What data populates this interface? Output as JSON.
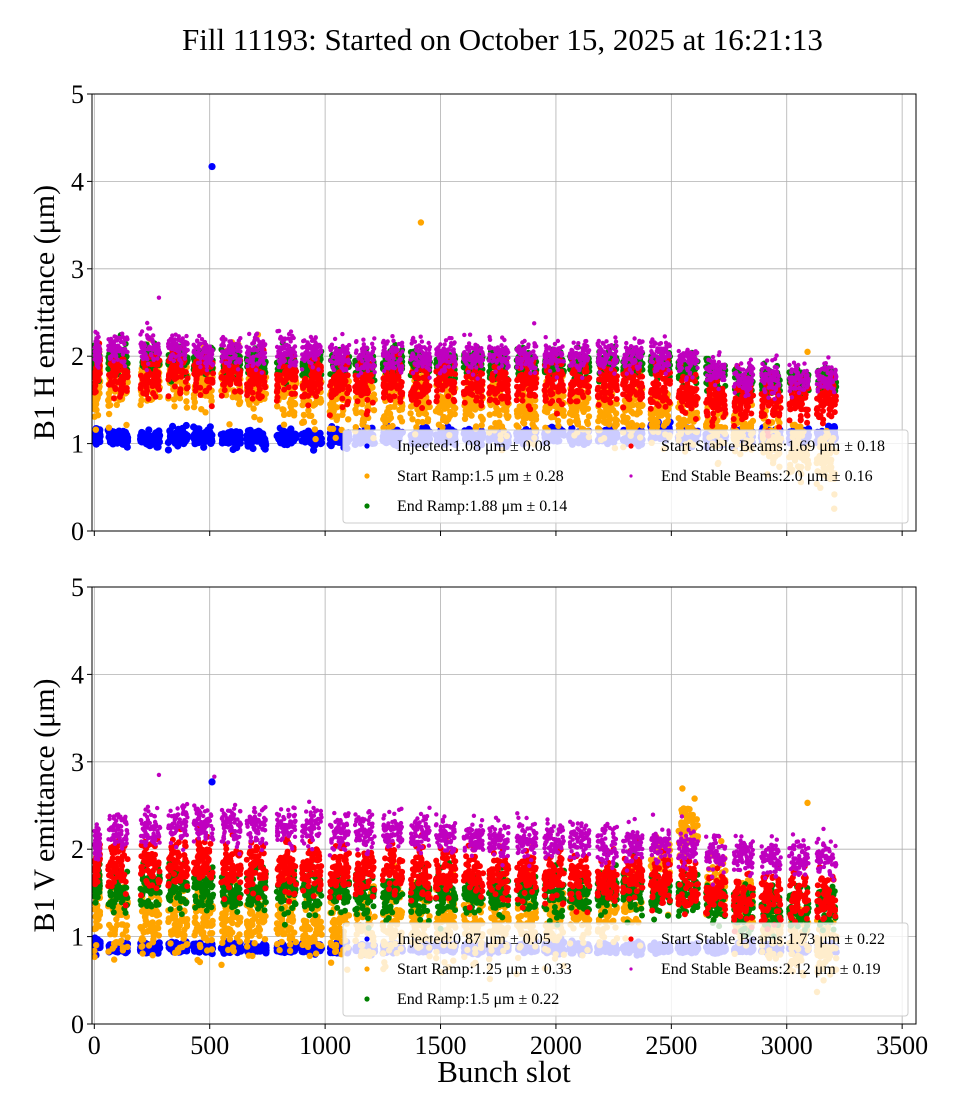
{
  "chart_data": [
    {
      "type": "scatter",
      "title": "Fill 11193: Started on October 15, 2025 at 16:21:13",
      "xlabel": "",
      "ylabel": "B1 H emittance (μm)",
      "xlim": [
        -10,
        3560
      ],
      "ylim": [
        0,
        5
      ],
      "xticks": [
        0,
        500,
        1000,
        1500,
        2000,
        2500,
        3000,
        3500
      ],
      "xtick_labels": [],
      "yticks": [
        0,
        1,
        2,
        3,
        4,
        5
      ],
      "ytick_labels": [
        "0",
        "1",
        "2",
        "3",
        "4",
        "5"
      ],
      "grid": true,
      "legend_placement": "lower-right",
      "trains_start_slots": [
        0,
        60,
        200,
        320,
        430,
        550,
        660,
        790,
        900,
        1020,
        1130,
        1250,
        1370,
        1480,
        1600,
        1710,
        1830,
        1950,
        2060,
        2180,
        2290,
        2410,
        2530,
        2650,
        2770,
        2890,
        3010,
        3130
      ],
      "train_span": 100,
      "last_filled_slot": 3230,
      "series": [
        {
          "name": "Injected",
          "label": "Injected:1.08 μm ± 0.08",
          "color": "#0000ff",
          "mean": 1.08,
          "std": 0.08,
          "train_means": [
            1.1,
            1.06,
            1.06,
            1.08,
            1.07,
            1.06,
            1.05,
            1.07,
            1.05,
            1.06,
            1.07,
            1.08,
            1.08,
            1.08,
            1.08,
            1.08,
            1.08,
            1.09,
            1.08,
            1.08,
            1.09,
            1.15,
            1.08,
            1.08,
            1.09,
            1.08,
            1.08,
            1.08
          ],
          "outliers": [
            [
              510,
              4.17
            ]
          ]
        },
        {
          "name": "Start Ramp",
          "label": "Start Ramp:1.5 μm ± 0.28",
          "color": "#ffa500",
          "mean": 1.5,
          "std": 0.28,
          "train_means": [
            1.6,
            1.65,
            1.75,
            1.75,
            1.7,
            1.7,
            1.65,
            1.6,
            1.6,
            1.55,
            1.55,
            1.55,
            1.55,
            1.5,
            1.5,
            1.45,
            1.45,
            1.45,
            1.45,
            1.4,
            1.4,
            1.35,
            1.3,
            1.25,
            1.2,
            1.05,
            0.9,
            0.85
          ],
          "outliers": [
            [
              1415,
              3.53
            ],
            [
              3090,
              2.05
            ]
          ]
        },
        {
          "name": "End Ramp",
          "label": "End Ramp:1.88 μm ± 0.14",
          "color": "#008000",
          "mean": 1.88,
          "std": 0.14,
          "train_means": [
            1.95,
            1.95,
            1.95,
            1.95,
            1.95,
            1.95,
            1.9,
            1.9,
            1.9,
            1.9,
            1.9,
            1.9,
            1.9,
            1.9,
            1.9,
            1.9,
            1.9,
            1.9,
            1.9,
            1.9,
            1.9,
            1.9,
            1.85,
            1.8,
            1.7,
            1.7,
            1.7,
            1.7
          ],
          "outliers": []
        },
        {
          "name": "Start Stable Beams",
          "label": "Start Stable Beams:1.69 μm ± 0.18",
          "color": "#ff0000",
          "mean": 1.69,
          "std": 0.18,
          "train_means": [
            1.85,
            1.8,
            1.8,
            1.85,
            1.8,
            1.8,
            1.75,
            1.75,
            1.75,
            1.7,
            1.7,
            1.7,
            1.7,
            1.7,
            1.7,
            1.7,
            1.7,
            1.7,
            1.7,
            1.7,
            1.7,
            1.65,
            1.6,
            1.5,
            1.5,
            1.5,
            1.5,
            1.5
          ],
          "outliers": []
        },
        {
          "name": "End Stable Beams",
          "label": "End Stable Beams:2.0 μm ± 0.16",
          "color": "#bf00bf",
          "mean": 2.0,
          "std": 0.16,
          "train_means": [
            2.05,
            2.1,
            2.1,
            2.1,
            2.05,
            2.05,
            2.05,
            2.05,
            2.05,
            2.0,
            2.0,
            2.0,
            2.0,
            2.0,
            2.0,
            2.0,
            2.0,
            2.0,
            2.0,
            2.0,
            2.0,
            2.0,
            1.95,
            1.85,
            1.75,
            1.75,
            1.75,
            1.75
          ],
          "outliers": [
            [
              280,
              2.67
            ]
          ]
        }
      ]
    },
    {
      "type": "scatter",
      "title": "",
      "xlabel": "Bunch slot",
      "ylabel": "B1 V emittance (μm)",
      "xlim": [
        -10,
        3560
      ],
      "ylim": [
        0,
        5
      ],
      "xticks": [
        0,
        500,
        1000,
        1500,
        2000,
        2500,
        3000,
        3500
      ],
      "xtick_labels": [
        "0",
        "500",
        "1000",
        "1500",
        "2000",
        "2500",
        "3000",
        "3500"
      ],
      "yticks": [
        0,
        1,
        2,
        3,
        4,
        5
      ],
      "ytick_labels": [
        "0",
        "1",
        "2",
        "3",
        "4",
        "5"
      ],
      "grid": true,
      "legend_placement": "lower-right",
      "trains_start_slots": [
        0,
        60,
        200,
        320,
        430,
        550,
        660,
        790,
        900,
        1020,
        1130,
        1250,
        1370,
        1480,
        1600,
        1710,
        1830,
        1950,
        2060,
        2180,
        2290,
        2410,
        2530,
        2650,
        2770,
        2890,
        3010,
        3130
      ],
      "train_span": 100,
      "last_filled_slot": 3230,
      "series": [
        {
          "name": "Injected",
          "label": "Injected:0.87 μm ± 0.05",
          "color": "#0000ff",
          "mean": 0.87,
          "std": 0.05,
          "train_means": [
            0.92,
            0.88,
            0.87,
            0.88,
            0.87,
            0.87,
            0.86,
            0.87,
            0.87,
            0.86,
            0.86,
            0.87,
            0.87,
            0.87,
            0.87,
            0.87,
            0.87,
            0.87,
            0.87,
            0.87,
            0.87,
            0.87,
            0.87,
            0.87,
            0.87,
            0.87,
            0.86,
            0.86
          ],
          "outliers": [
            [
              510,
              2.77
            ]
          ]
        },
        {
          "name": "Start Ramp",
          "label": "Start Ramp:1.25 μm ± 0.33",
          "color": "#ffa500",
          "mean": 1.25,
          "std": 0.33,
          "train_means": [
            1.35,
            1.2,
            1.2,
            1.2,
            1.2,
            1.2,
            1.2,
            1.2,
            1.2,
            1.15,
            1.15,
            1.15,
            1.15,
            1.15,
            1.15,
            1.15,
            1.15,
            1.15,
            1.25,
            1.3,
            1.4,
            1.8,
            2.2,
            1.6,
            1.3,
            1.1,
            0.95,
            0.9
          ],
          "outliers": [
            [
              3090,
              2.53
            ]
          ]
        },
        {
          "name": "End Ramp",
          "label": "End Ramp:1.5 μm ± 0.22",
          "color": "#008000",
          "mean": 1.5,
          "std": 0.22,
          "train_means": [
            1.65,
            1.5,
            1.55,
            1.55,
            1.55,
            1.5,
            1.5,
            1.5,
            1.5,
            1.5,
            1.5,
            1.5,
            1.5,
            1.5,
            1.5,
            1.5,
            1.5,
            1.5,
            1.5,
            1.5,
            1.5,
            1.5,
            1.5,
            1.4,
            1.3,
            1.3,
            1.3,
            1.3
          ],
          "outliers": []
        },
        {
          "name": "Start Stable Beams",
          "label": "Start Stable Beams:1.73 μm ± 0.22",
          "color": "#ff0000",
          "mean": 1.73,
          "std": 0.22,
          "train_means": [
            1.85,
            1.85,
            1.85,
            1.85,
            1.85,
            1.8,
            1.8,
            1.8,
            1.8,
            1.75,
            1.75,
            1.75,
            1.75,
            1.75,
            1.7,
            1.7,
            1.7,
            1.7,
            1.7,
            1.7,
            1.7,
            1.65,
            1.6,
            1.5,
            1.45,
            1.45,
            1.45,
            1.45
          ],
          "outliers": []
        },
        {
          "name": "End Stable Beams",
          "label": "End Stable Beams:2.12 μm ± 0.19",
          "color": "#bf00bf",
          "mean": 2.12,
          "std": 0.19,
          "train_means": [
            2.05,
            2.2,
            2.25,
            2.3,
            2.3,
            2.25,
            2.25,
            2.25,
            2.25,
            2.2,
            2.2,
            2.2,
            2.2,
            2.15,
            2.15,
            2.1,
            2.1,
            2.1,
            2.1,
            2.05,
            2.05,
            2.05,
            2.0,
            1.95,
            1.9,
            1.9,
            1.9,
            1.9
          ],
          "outliers": [
            [
              280,
              2.85
            ],
            [
              520,
              2.83
            ]
          ]
        }
      ]
    }
  ]
}
